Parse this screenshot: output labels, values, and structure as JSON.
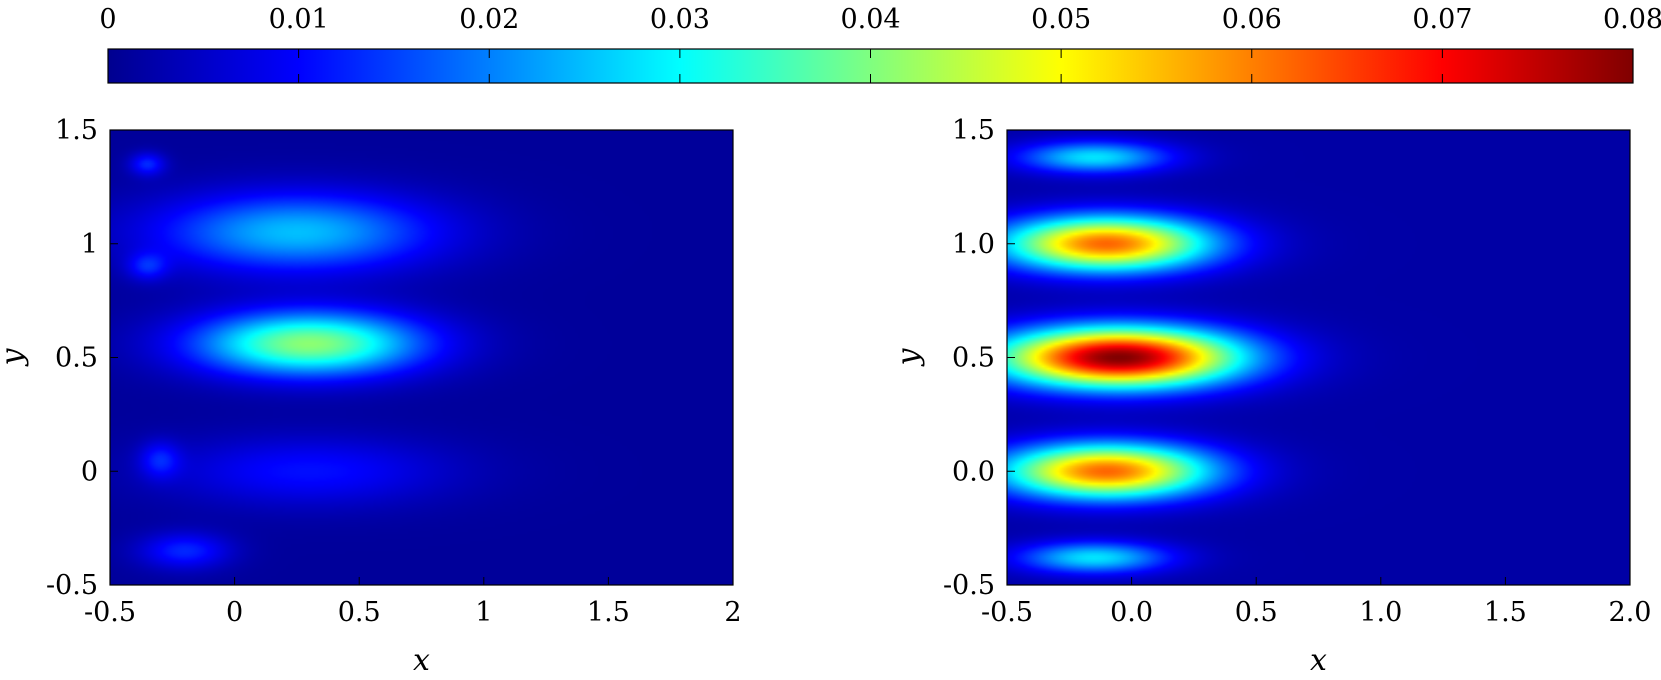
{
  "colorbar": {
    "range": [
      0,
      0.08
    ],
    "ticks": [
      0,
      0.01,
      0.02,
      0.03,
      0.04,
      0.05,
      0.06,
      0.07,
      0.08
    ],
    "tick_labels": [
      "0",
      "0.01",
      "0.02",
      "0.03",
      "0.04",
      "0.05",
      "0.06",
      "0.07",
      "0.08"
    ],
    "colormap": "jet",
    "stops": [
      "#00008f",
      "#0000ff",
      "#00ffff",
      "#ffff00",
      "#ff0000",
      "#800000"
    ]
  },
  "chart_data": [
    {
      "type": "heatmap",
      "xlabel": "x",
      "ylabel": "y",
      "xlim": [
        -0.5,
        2
      ],
      "ylim": [
        -0.5,
        1.5
      ],
      "xticks": [
        -0.5,
        0,
        0.5,
        1,
        1.5,
        2
      ],
      "xtick_labels": [
        "-0.5",
        "0",
        "0.5",
        "1",
        "1.5",
        "2"
      ],
      "yticks": [
        -0.5,
        0,
        0.5,
        1,
        1.5
      ],
      "ytick_labels": [
        "-0.5",
        "0",
        "0.5",
        "1",
        "1.5"
      ],
      "background": 0.001,
      "blobs": [
        {
          "x": 0.3,
          "y": 0.56,
          "sx": 0.45,
          "sy": 0.14,
          "value": 0.04
        },
        {
          "x": 0.25,
          "y": 1.05,
          "sx": 0.55,
          "sy": 0.17,
          "value": 0.024
        },
        {
          "x": 0.3,
          "y": 0.0,
          "sx": 0.55,
          "sy": 0.15,
          "value": 0.01
        },
        {
          "x": -0.2,
          "y": -0.35,
          "sx": 0.18,
          "sy": 0.08,
          "value": 0.012
        },
        {
          "x": -0.35,
          "y": 1.35,
          "sx": 0.07,
          "sy": 0.05,
          "value": 0.012
        },
        {
          "x": -0.35,
          "y": 0.9,
          "sx": 0.08,
          "sy": 0.06,
          "value": 0.01
        },
        {
          "x": -0.3,
          "y": 0.05,
          "sx": 0.08,
          "sy": 0.08,
          "value": 0.01
        }
      ]
    },
    {
      "type": "heatmap",
      "xlabel": "x",
      "ylabel": "y",
      "xlim": [
        -0.5,
        2.0
      ],
      "ylim": [
        -0.5,
        1.5
      ],
      "xticks": [
        -0.5,
        0.0,
        0.5,
        1.0,
        1.5,
        2.0
      ],
      "xtick_labels": [
        "-0.5",
        "0.0",
        "0.5",
        "1.0",
        "1.5",
        "2.0"
      ],
      "yticks": [
        -0.5,
        0.0,
        0.5,
        1.0,
        1.5
      ],
      "ytick_labels": [
        "-0.5",
        "0.0",
        "0.5",
        "1.0",
        "1.5"
      ],
      "background": 0.002,
      "blobs": [
        {
          "x": -0.05,
          "y": 0.5,
          "sx": 0.48,
          "sy": 0.13,
          "value": 0.078
        },
        {
          "x": -0.1,
          "y": 1.0,
          "sx": 0.42,
          "sy": 0.12,
          "value": 0.06
        },
        {
          "x": -0.1,
          "y": 0.0,
          "sx": 0.42,
          "sy": 0.12,
          "value": 0.06
        },
        {
          "x": -0.15,
          "y": 1.38,
          "sx": 0.3,
          "sy": 0.07,
          "value": 0.026
        },
        {
          "x": -0.15,
          "y": -0.38,
          "sx": 0.3,
          "sy": 0.07,
          "value": 0.026
        }
      ]
    }
  ]
}
